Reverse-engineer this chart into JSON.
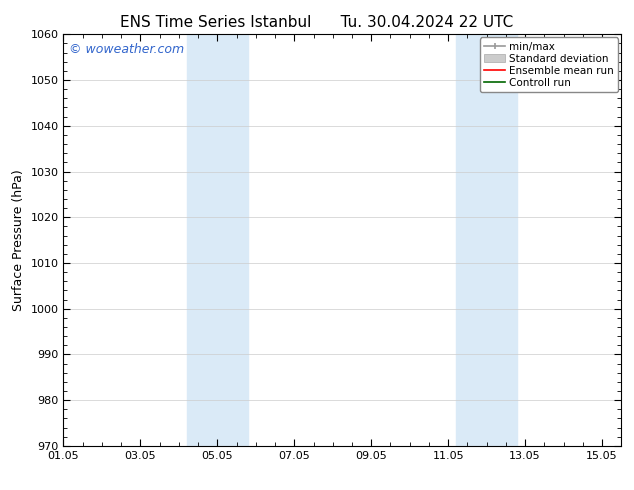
{
  "title_left": "ENS Time Series Istanbul",
  "title_right": "Tu. 30.04.2024 22 UTC",
  "ylabel": "Surface Pressure (hPa)",
  "ylim": [
    970,
    1060
  ],
  "yticks": [
    970,
    980,
    990,
    1000,
    1010,
    1020,
    1030,
    1040,
    1050,
    1060
  ],
  "xlim_start": 0.0,
  "xlim_end": 14.5,
  "xtick_labels": [
    "01.05",
    "03.05",
    "05.05",
    "07.05",
    "09.05",
    "11.05",
    "13.05",
    "15.05"
  ],
  "xtick_positions": [
    0.0,
    2.0,
    4.0,
    6.0,
    8.0,
    10.0,
    12.0,
    14.0
  ],
  "shade_regions": [
    {
      "x_start": 3.2,
      "x_end": 4.8
    },
    {
      "x_start": 10.2,
      "x_end": 11.8
    }
  ],
  "shade_color": "#daeaf7",
  "watermark": "© woweather.com",
  "watermark_color": "#3366cc",
  "background_color": "#ffffff",
  "grid_color": "#cccccc",
  "title_fontsize": 11,
  "axis_fontsize": 9,
  "tick_fontsize": 8,
  "watermark_fontsize": 9,
  "legend_fontsize": 7.5
}
